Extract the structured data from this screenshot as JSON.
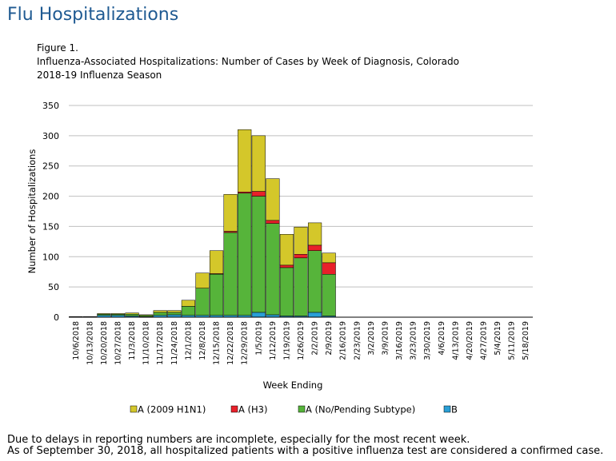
{
  "page": {
    "title": "Flu Hospitalizations"
  },
  "figure": {
    "label": "Figure 1.",
    "caption_line1": "Influenza-Associated Hospitalizations: Number of  Cases by Week of Diagnosis, Colorado",
    "caption_line2": "2018-19  Influenza Season"
  },
  "footnotes": {
    "line1": "Due to delays in reporting numbers are incomplete, especially for the most recent week.",
    "line2": "As of September 30, 2018, all hospitalized patients with a positive influenza test are considered a confirmed case."
  },
  "colors": {
    "h1n1": "#d4c72a",
    "h3": "#e8202a",
    "no_subtype": "#56b43a",
    "b": "#2a9fd6",
    "grid": "#bfbfbf",
    "title": "#1f5a92"
  },
  "chart_data": {
    "type": "bar",
    "stacked": true,
    "title": "Influenza-Associated Hospitalizations: Number of  Cases by Week of Diagnosis, Colorado",
    "xlabel": "Week Ending",
    "ylabel": "Number of Hospitalizations",
    "ylim": [
      0,
      350
    ],
    "yticks": [
      0,
      50,
      100,
      150,
      200,
      250,
      300,
      350
    ],
    "grid": true,
    "legend_position": "bottom",
    "categories": [
      "10/6/2018",
      "10/13/2018",
      "10/20/2018",
      "10/27/2018",
      "11/3/2018",
      "11/10/2018",
      "11/17/2018",
      "11/24/2018",
      "12/1/2018",
      "12/8/2018",
      "12/15/2018",
      "12/22/2018",
      "12/29/2018",
      "1/5/2019",
      "1/12/2019",
      "1/19/2019",
      "1/26/2019",
      "2/2/2019",
      "2/9/2019",
      "2/16/2019",
      "2/23/2019",
      "3/2/2019",
      "3/9/2019",
      "3/16/2019",
      "3/23/2019",
      "3/30/2019",
      "4/6/2019",
      "4/13/2019",
      "4/20/2019",
      "4/27/2019",
      "5/4/2019",
      "5/11/2019",
      "5/18/2019"
    ],
    "series": [
      {
        "name": "B",
        "key": "b",
        "values": [
          0,
          0,
          3,
          3,
          2,
          1,
          3,
          4,
          3,
          3,
          3,
          3,
          3,
          8,
          4,
          2,
          2,
          8,
          2,
          0,
          0,
          0,
          0,
          0,
          0,
          0,
          0,
          0,
          0,
          0,
          0,
          0,
          0
        ]
      },
      {
        "name": "A (No/Pending Subtype)",
        "key": "no_subtype",
        "values": [
          1,
          1,
          2,
          2,
          3,
          2,
          5,
          4,
          15,
          45,
          68,
          137,
          202,
          192,
          151,
          80,
          96,
          102,
          69,
          0,
          0,
          0,
          0,
          0,
          0,
          0,
          0,
          0,
          0,
          0,
          0,
          0,
          0
        ]
      },
      {
        "name": "A (H3)",
        "key": "h3",
        "values": [
          0,
          0,
          0,
          0,
          0,
          0,
          0,
          0,
          0,
          0,
          1,
          2,
          2,
          8,
          5,
          4,
          6,
          9,
          19,
          0,
          0,
          0,
          0,
          0,
          0,
          0,
          0,
          0,
          0,
          0,
          0,
          0,
          0
        ]
      },
      {
        "name": "A (2009 H1N1)",
        "key": "h1n1",
        "values": [
          0,
          0,
          1,
          1,
          2,
          1,
          3,
          3,
          10,
          25,
          38,
          61,
          103,
          92,
          69,
          51,
          45,
          37,
          16,
          0,
          0,
          0,
          0,
          0,
          0,
          0,
          0,
          0,
          0,
          0,
          0,
          0,
          0
        ]
      }
    ],
    "legend": [
      {
        "label": "A (2009 H1N1)",
        "key": "h1n1"
      },
      {
        "label": "A (H3)",
        "key": "h3"
      },
      {
        "label": "A (No/Pending Subtype)",
        "key": "no_subtype"
      },
      {
        "label": "B",
        "key": "b"
      }
    ]
  }
}
